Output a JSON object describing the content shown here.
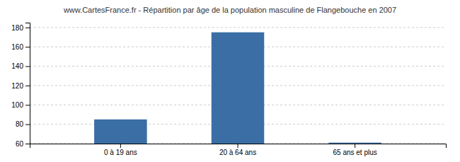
{
  "chart_data": {
    "type": "bar",
    "title": "www.CartesFrance.fr - Répartition par âge de la population masculine de Flangebouche en 2007",
    "categories": [
      "0 à 19 ans",
      "20 à 64 ans",
      "65 ans et plus"
    ],
    "values": [
      85,
      175,
      61
    ],
    "color": "#3a6ea5",
    "ylim": [
      60,
      185
    ],
    "yticks": [
      60,
      80,
      100,
      120,
      140,
      160,
      180
    ],
    "grid": true
  }
}
